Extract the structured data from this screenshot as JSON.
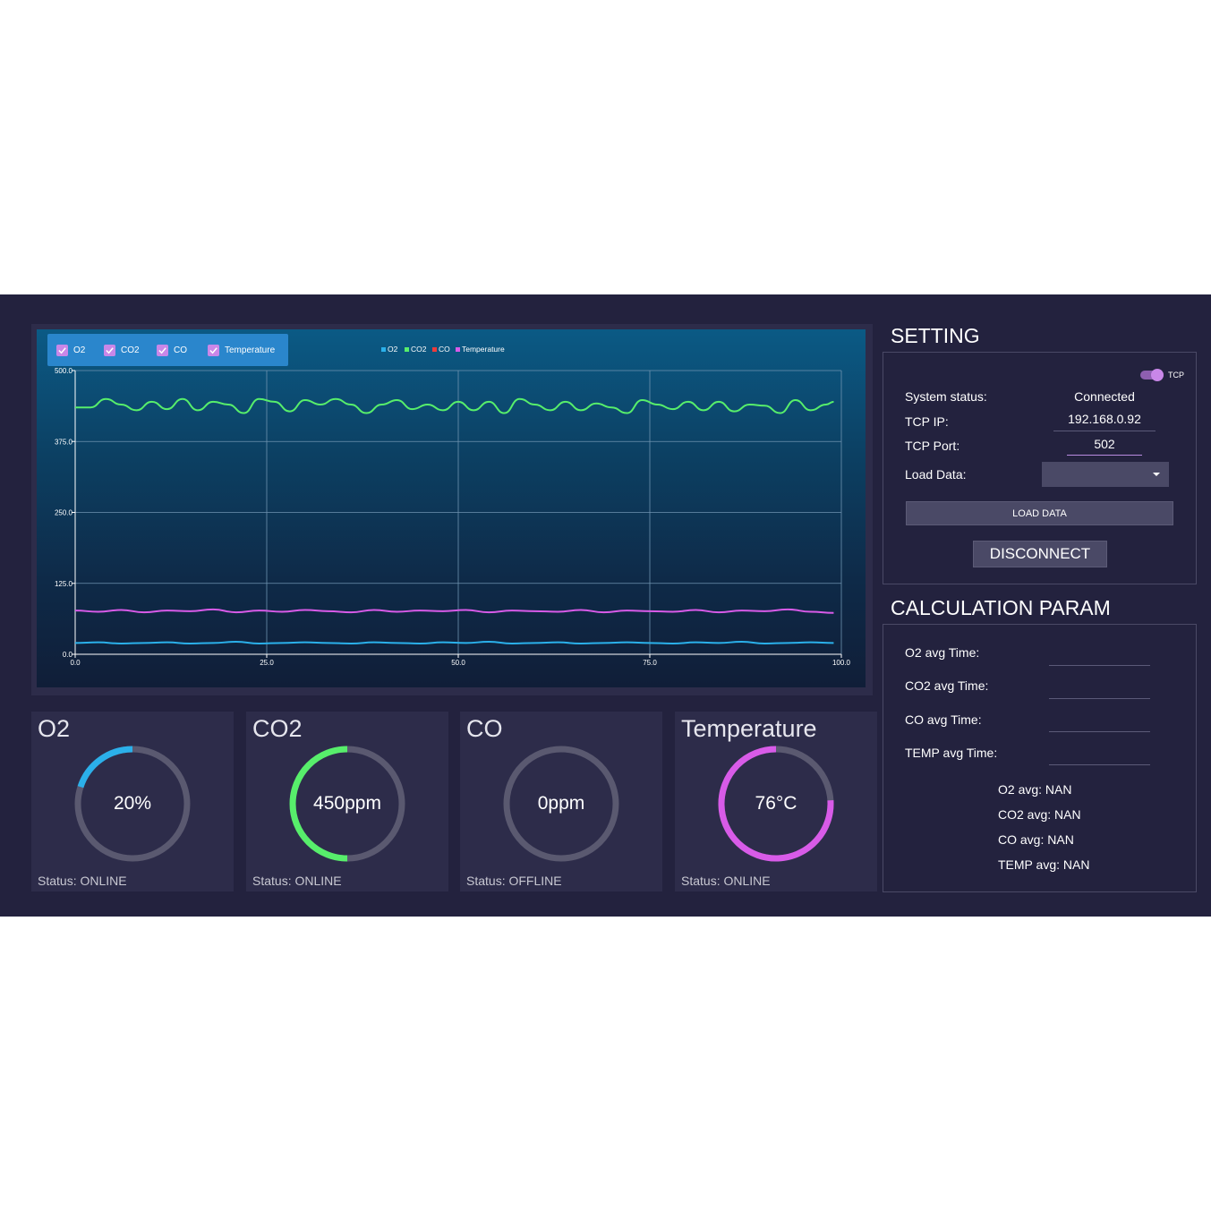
{
  "series_toggles": [
    {
      "label": "O2",
      "checked": true
    },
    {
      "label": "CO2",
      "checked": true
    },
    {
      "label": "CO",
      "checked": true
    },
    {
      "label": "Temperature",
      "checked": true
    }
  ],
  "chart_data": {
    "type": "line",
    "legend": [
      {
        "name": "O2",
        "color": "#2bb0ea"
      },
      {
        "name": "CO2",
        "color": "#57ee6b"
      },
      {
        "name": "CO",
        "color": "#ee3b3b"
      },
      {
        "name": "Temperature",
        "color": "#d85be8"
      }
    ],
    "legend_placement": "top-center",
    "xlim": [
      0,
      100
    ],
    "ylim": [
      0,
      500
    ],
    "x_ticks": [
      "0.0",
      "25.0",
      "50.0",
      "75.0",
      "100.0"
    ],
    "y_ticks": [
      "0.0",
      "125.0",
      "250.0",
      "375.0",
      "500.0"
    ],
    "grid": true,
    "series": [
      {
        "name": "CO2",
        "color": "#57ee6b",
        "x": [
          0,
          2,
          4,
          6,
          8,
          10,
          12,
          14,
          16,
          18,
          20,
          22,
          24,
          26,
          28,
          30,
          32,
          34,
          36,
          38,
          40,
          42,
          44,
          46,
          48,
          50,
          52,
          54,
          56,
          58,
          60,
          62,
          64,
          66,
          68,
          70,
          72,
          74,
          76,
          78,
          80,
          82,
          84,
          86,
          88,
          90,
          92,
          94,
          96,
          98,
          99
        ],
        "y": [
          435,
          435,
          450,
          440,
          430,
          445,
          432,
          450,
          430,
          445,
          440,
          425,
          450,
          445,
          428,
          448,
          440,
          450,
          440,
          425,
          440,
          448,
          432,
          440,
          430,
          445,
          430,
          445,
          425,
          450,
          440,
          430,
          445,
          430,
          442,
          435,
          425,
          448,
          440,
          432,
          445,
          430,
          445,
          428,
          440,
          438,
          425,
          448,
          430,
          440,
          445
        ]
      },
      {
        "name": "Temperature",
        "color": "#d85be8",
        "x": [
          0,
          3,
          6,
          9,
          12,
          15,
          18,
          21,
          24,
          27,
          30,
          33,
          36,
          39,
          42,
          45,
          48,
          51,
          54,
          57,
          60,
          63,
          66,
          69,
          72,
          75,
          78,
          81,
          84,
          87,
          90,
          93,
          96,
          99
        ],
        "y": [
          77,
          75,
          78,
          74,
          77,
          76,
          79,
          74,
          77,
          75,
          78,
          76,
          74,
          78,
          75,
          77,
          76,
          78,
          74,
          77,
          76,
          75,
          78,
          74,
          77,
          76,
          75,
          78,
          74,
          77,
          76,
          79,
          75,
          73
        ]
      },
      {
        "name": "O2",
        "color": "#2bb0ea",
        "x": [
          0,
          3,
          6,
          9,
          12,
          15,
          18,
          21,
          24,
          27,
          30,
          33,
          36,
          39,
          42,
          45,
          48,
          51,
          54,
          57,
          60,
          63,
          66,
          69,
          72,
          75,
          78,
          81,
          84,
          87,
          90,
          93,
          96,
          99
        ],
        "y": [
          20,
          21,
          19,
          20,
          21,
          19,
          20,
          22,
          19,
          20,
          21,
          20,
          19,
          21,
          20,
          19,
          21,
          20,
          22,
          19,
          20,
          21,
          19,
          20,
          21,
          20,
          19,
          21,
          20,
          22,
          19,
          20,
          21,
          20
        ]
      },
      {
        "name": "CO",
        "color": "#ee3b3b",
        "x": [],
        "y": []
      }
    ]
  },
  "gauges": [
    {
      "title": "O2",
      "value": "20%",
      "status": "Status: ONLINE",
      "fraction": 0.2,
      "color": "#2bb0ea"
    },
    {
      "title": "CO2",
      "value": "450ppm",
      "status": "Status: ONLINE",
      "fraction": 0.5,
      "color": "#57ee6b"
    },
    {
      "title": "CO",
      "value": "0ppm",
      "status": "Status: OFFLINE",
      "fraction": 0.0,
      "color": "#ee3b3b"
    },
    {
      "title": "Temperature",
      "value": "76°C",
      "status": "Status: ONLINE",
      "fraction": 0.76,
      "color": "#d85be8"
    }
  ],
  "setting": {
    "title": "SETTING",
    "switch_label": "TCP",
    "switch_on": true,
    "system_status_label": "System status:",
    "system_status_value": "Connected",
    "tcp_ip_label": "TCP IP:",
    "tcp_ip_value": "192.168.0.92",
    "tcp_port_label": "TCP Port:",
    "tcp_port_value": "502",
    "load_data_label": "Load Data:",
    "load_data_selected": "",
    "load_data_button": "LOAD DATA",
    "disconnect_button": "DISCONNECT"
  },
  "calc": {
    "title": "CALCULATION PARAM",
    "o2_avg_time_label": "O2 avg Time:",
    "co2_avg_time_label": "CO2 avg Time:",
    "co_avg_time_label": "CO avg Time:",
    "temp_avg_time_label": "TEMP avg Time:",
    "o2_avg": "O2 avg: NAN",
    "co2_avg": "CO2 avg: NAN",
    "co_avg": "CO avg: NAN",
    "temp_avg": "TEMP avg: NAN"
  }
}
